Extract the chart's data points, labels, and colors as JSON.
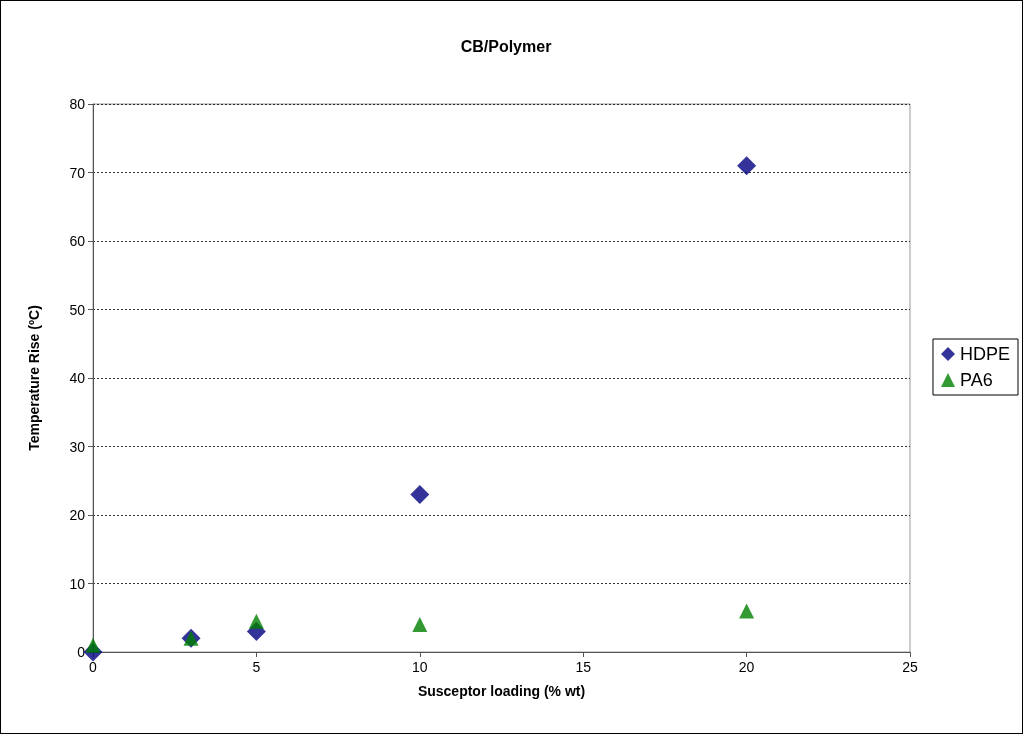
{
  "chart_data": {
    "type": "scatter",
    "title": "CB/Polymer",
    "xlabel": "Susceptor loading (% wt)",
    "ylabel": "Temperature Rise (ºC)",
    "series": [
      {
        "name": "HDPE",
        "color": "#000080",
        "marker": "diamond",
        "x": [
          0,
          3,
          5,
          10,
          20
        ],
        "values": [
          0,
          2,
          3,
          23,
          71
        ]
      },
      {
        "name": "PA6",
        "color": "#008000",
        "marker": "triangle",
        "x": [
          0,
          3,
          5,
          10,
          20
        ],
        "values": [
          1,
          2,
          4.5,
          4,
          6
        ]
      }
    ],
    "xlim": [
      0,
      25
    ],
    "xticks": [
      0,
      5,
      10,
      15,
      20,
      25
    ],
    "ylim": [
      0,
      80
    ],
    "yticks": [
      0,
      10,
      20,
      30,
      40,
      50,
      60,
      70,
      80
    ],
    "grid": "y",
    "legend": "right"
  }
}
